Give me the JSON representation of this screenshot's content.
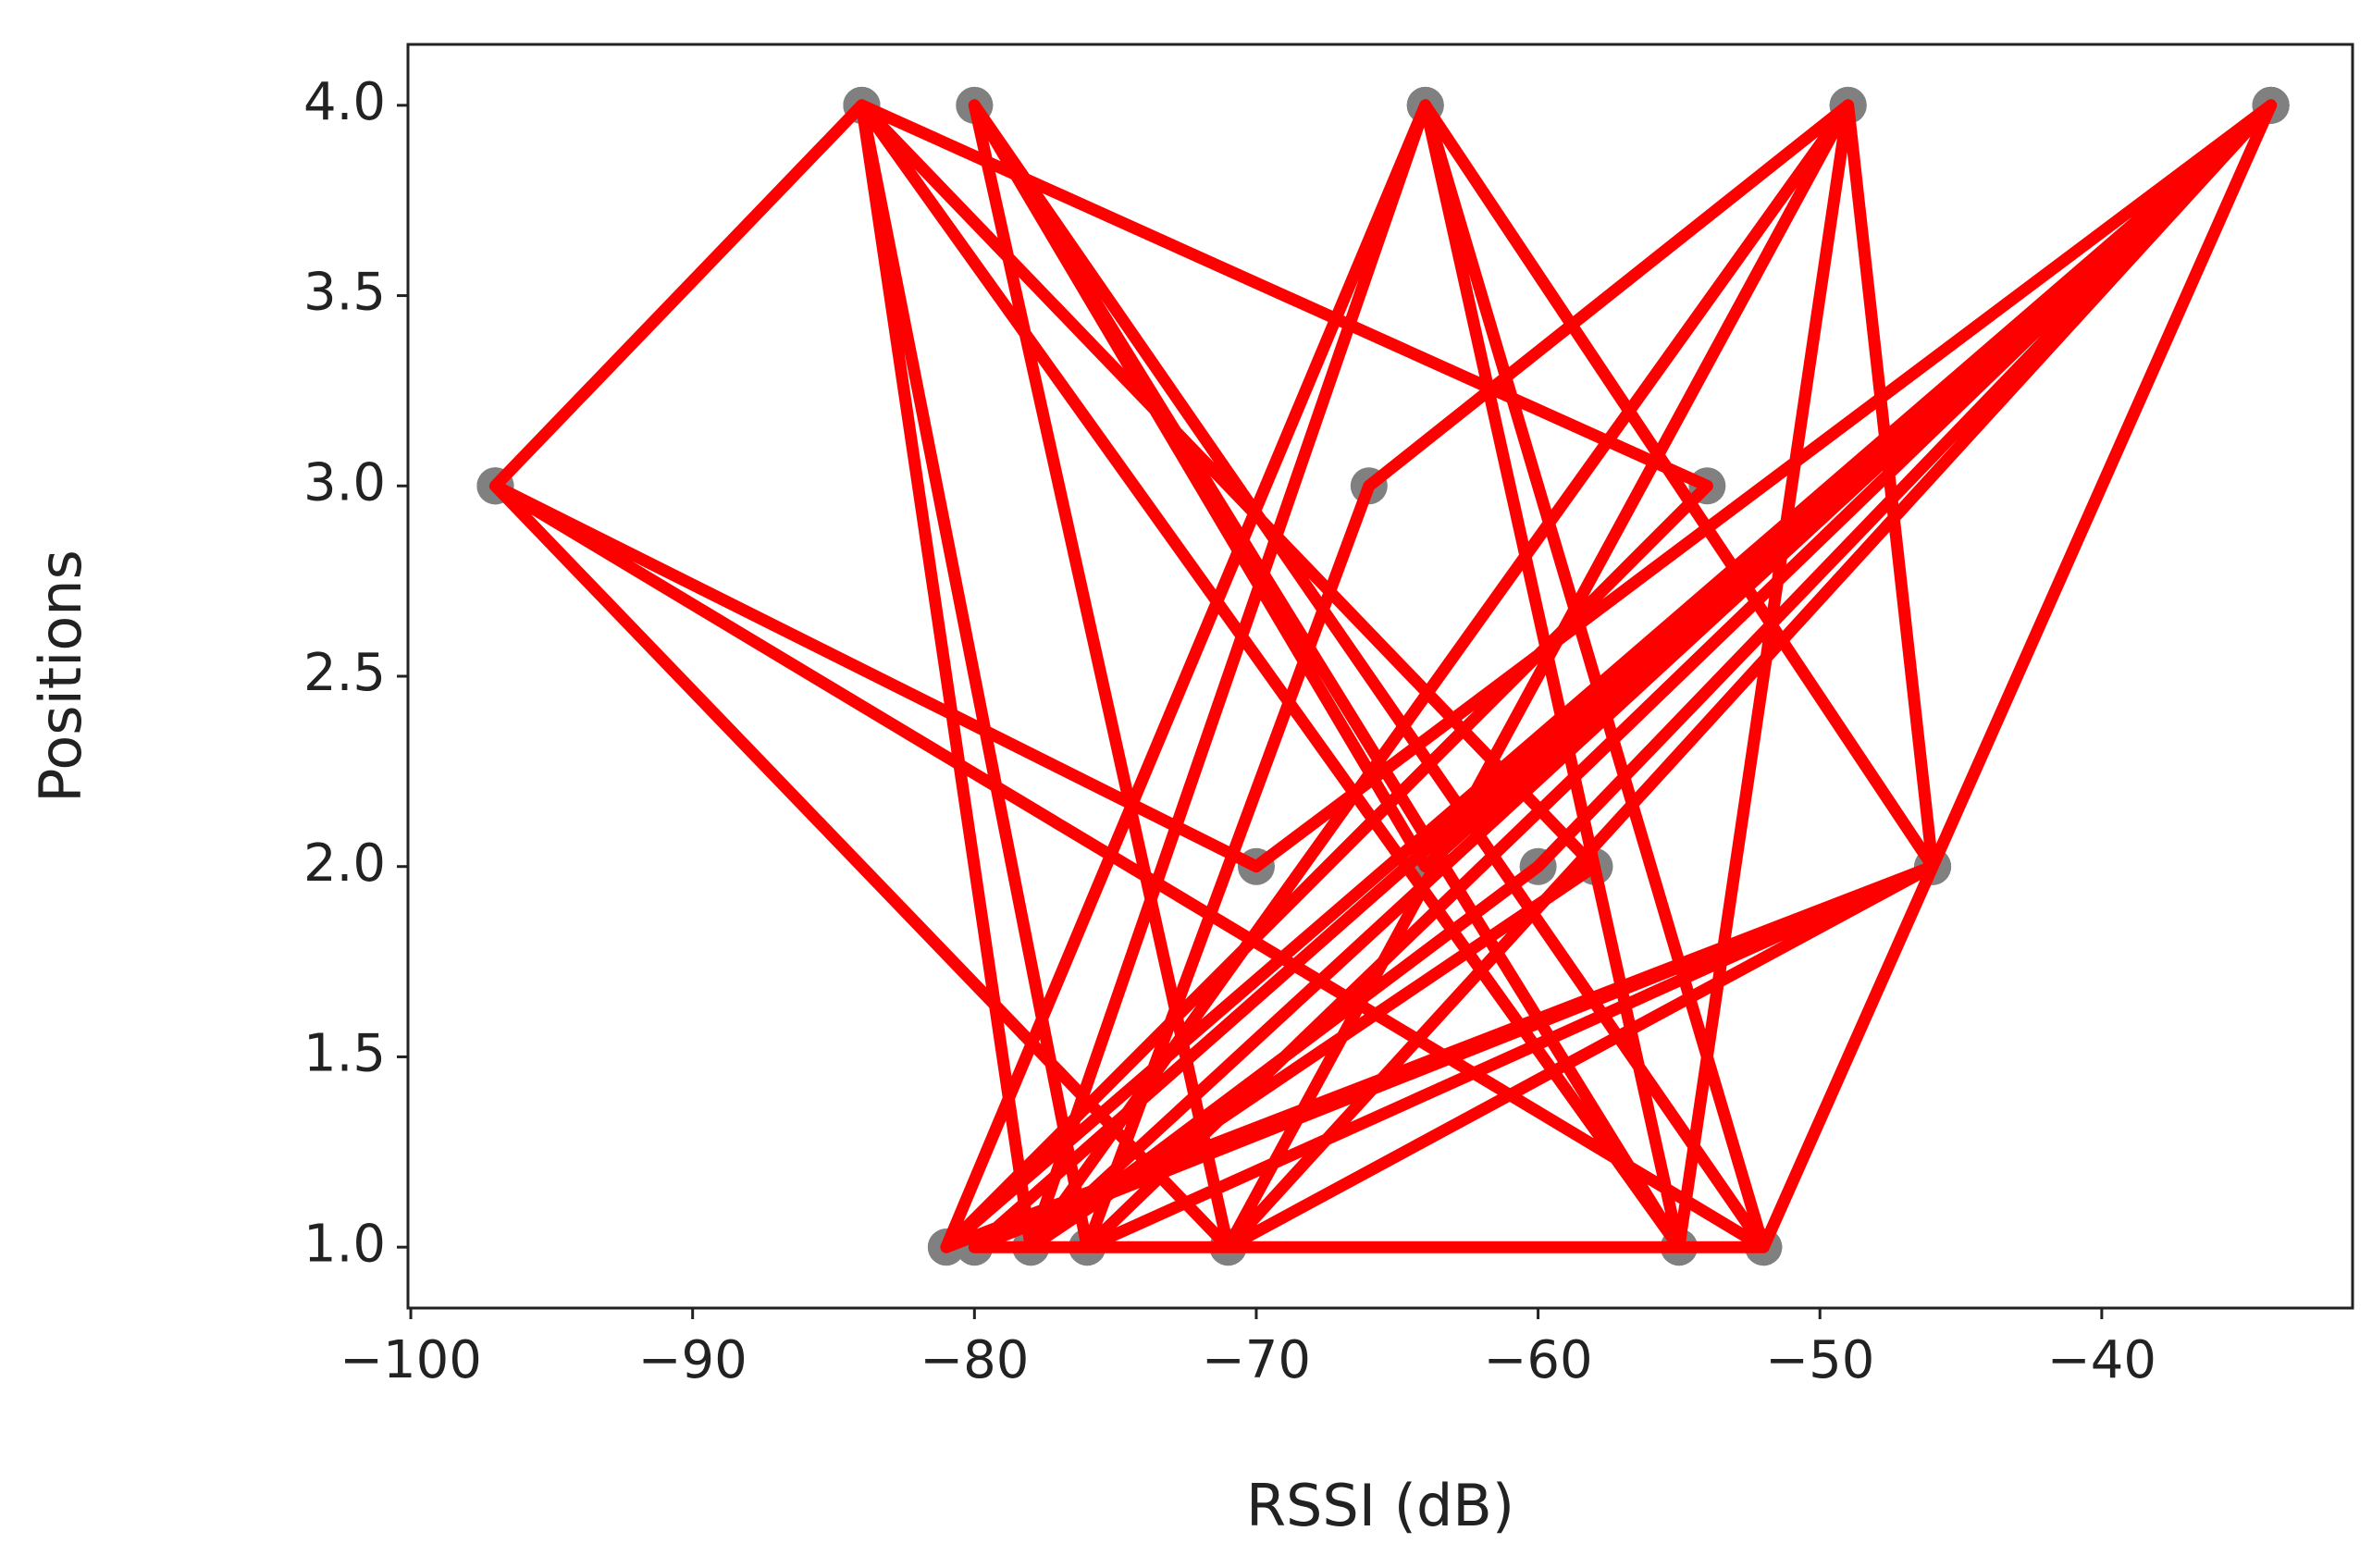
{
  "chart_data": {
    "type": "line",
    "x_label": "RSSI (dB)",
    "y_label": "Positions",
    "color": "#ff0000",
    "marker_color": "#808080",
    "x": [
      -97,
      -84,
      -78,
      -64,
      -52,
      -34,
      -71,
      -80,
      -55,
      -49,
      -46,
      -76,
      -84,
      -54,
      -81,
      -34,
      -64,
      -80,
      -52,
      -97,
      -71,
      -49,
      -78,
      -60,
      -34,
      -76,
      -84,
      -55,
      -64,
      -46,
      -80,
      -52,
      -97,
      -70,
      -34,
      -78,
      -58,
      -84,
      -55,
      -49,
      -66,
      -76,
      -34,
      -80,
      -52,
      -64,
      -81,
      -46,
      -71,
      -34
    ],
    "values": [
      3,
      4,
      1,
      4,
      1,
      4,
      1,
      4,
      1,
      4,
      2,
      1,
      4,
      3,
      1,
      4,
      2,
      4,
      1,
      3,
      1,
      4,
      1,
      2,
      4,
      1,
      4,
      1,
      4,
      2,
      1,
      1,
      3,
      2,
      4,
      1,
      2,
      4,
      1,
      4,
      3,
      1,
      4,
      1,
      1,
      4,
      1,
      2,
      1,
      4
    ],
    "xlim": [
      -100.1,
      -31.1
    ],
    "ylim": [
      0.84,
      4.16
    ],
    "xticks": [
      {
        "value": -100,
        "label": "−100"
      },
      {
        "value": -90,
        "label": "−90"
      },
      {
        "value": -80,
        "label": "−80"
      },
      {
        "value": -70,
        "label": "−70"
      },
      {
        "value": -60,
        "label": "−60"
      },
      {
        "value": -50,
        "label": "−50"
      },
      {
        "value": -40,
        "label": "−40"
      }
    ],
    "yticks": [
      {
        "value": 1,
        "label": "1.0"
      },
      {
        "value": 1.5,
        "label": "1.5"
      },
      {
        "value": 2,
        "label": "2.0"
      },
      {
        "value": 2.5,
        "label": "2.5"
      },
      {
        "value": 3,
        "label": "3.0"
      },
      {
        "value": 3.5,
        "label": "3.5"
      },
      {
        "value": 4,
        "label": "4.0"
      }
    ]
  }
}
